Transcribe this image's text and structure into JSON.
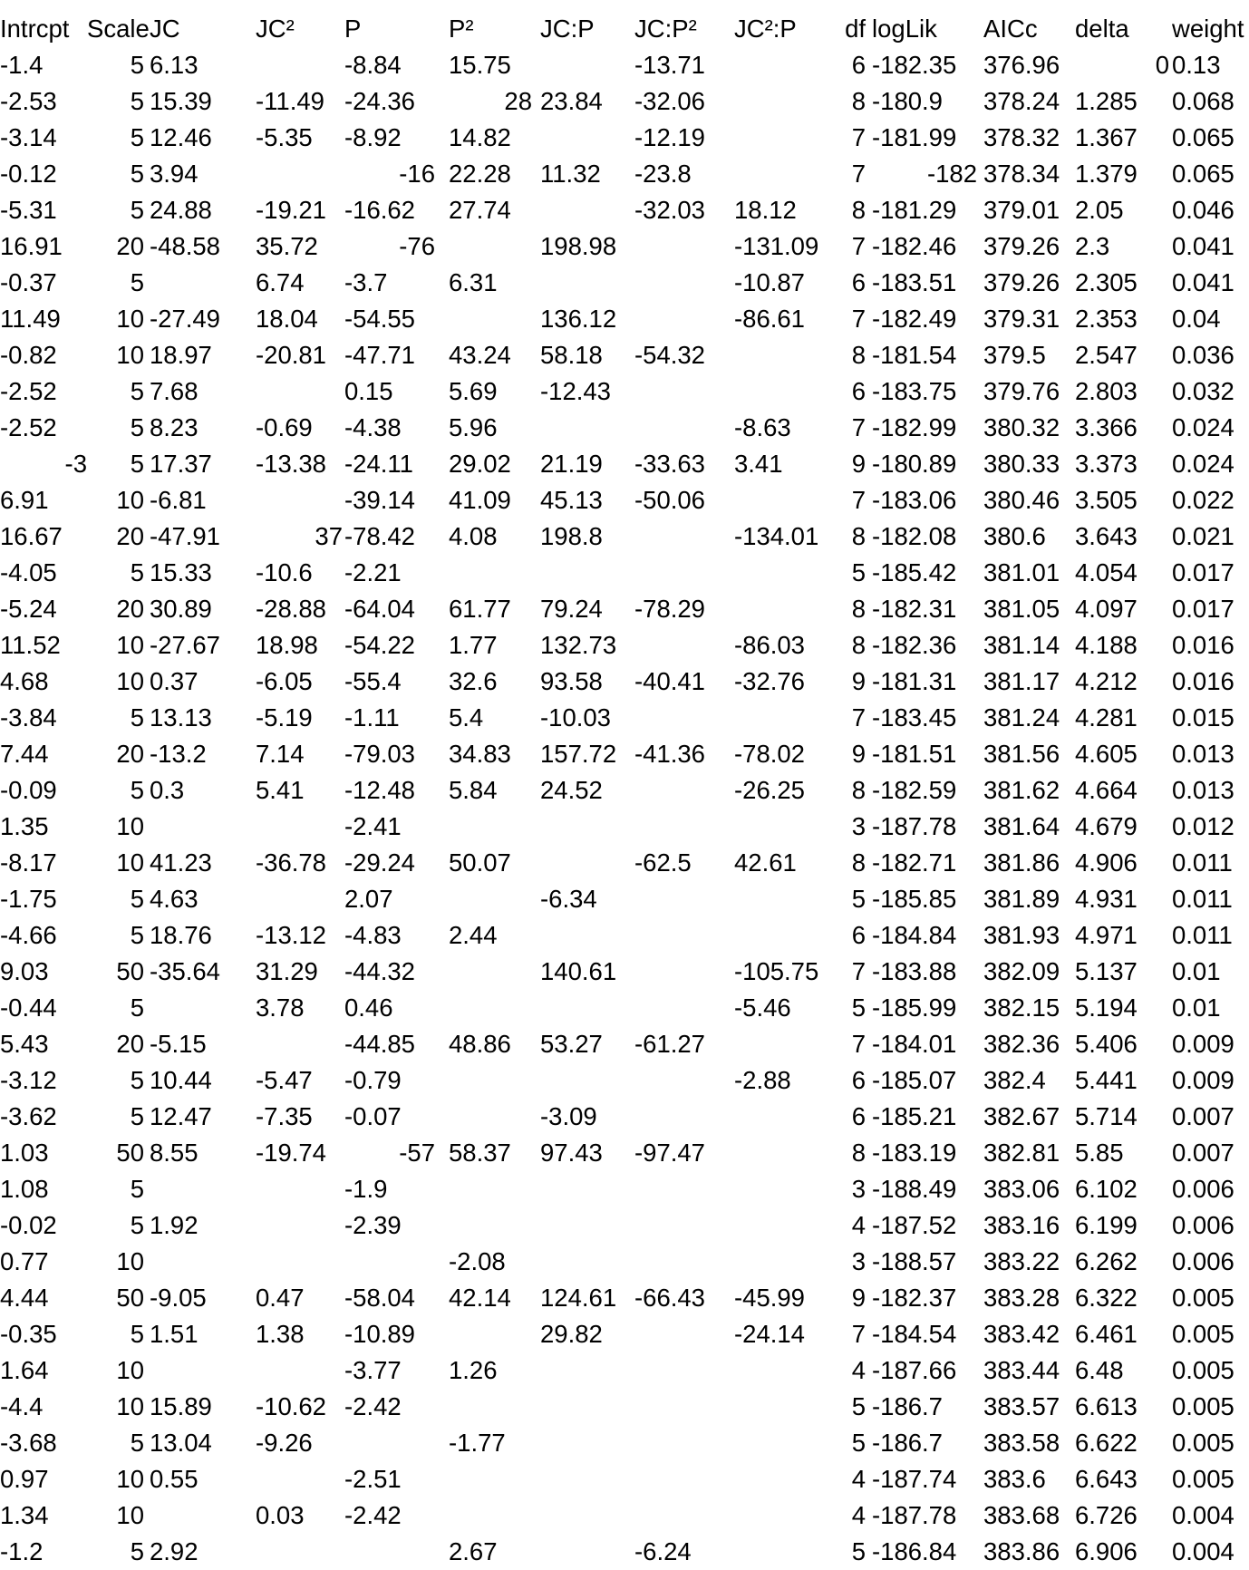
{
  "table": {
    "columns": [
      {
        "key": "intrcpt",
        "label": "Intrcpt",
        "align": "left"
      },
      {
        "key": "scale",
        "label": "Scale",
        "align": "right"
      },
      {
        "key": "jc",
        "label": "JC",
        "align": "left"
      },
      {
        "key": "jc2",
        "label": "JC²",
        "align": "left"
      },
      {
        "key": "p",
        "label": "P",
        "align": "left"
      },
      {
        "key": "p2",
        "label": "P²",
        "align": "left"
      },
      {
        "key": "jcp",
        "label": "JC:P",
        "align": "left"
      },
      {
        "key": "jcp2",
        "label": "JC:P²",
        "align": "left"
      },
      {
        "key": "jc2p",
        "label": "JC²:P",
        "align": "left"
      },
      {
        "key": "df",
        "label": "df",
        "align": "right"
      },
      {
        "key": "loglik",
        "label": "logLik",
        "align": "left"
      },
      {
        "key": "aicc",
        "label": "AICc",
        "align": "left"
      },
      {
        "key": "delta",
        "label": "delta",
        "align": "left"
      },
      {
        "key": "weight",
        "label": "weight",
        "align": "left"
      }
    ],
    "rows": [
      [
        "-1.4",
        "5",
        "6.13",
        "",
        "-8.84",
        "15.75",
        "",
        "-13.71",
        "",
        "6",
        "-182.35",
        "376.96",
        "0",
        "0.13"
      ],
      [
        "-2.53",
        "5",
        "15.39",
        "-11.49",
        "-24.36",
        "28",
        "23.84",
        "-32.06",
        "",
        "8",
        "-180.9",
        "378.24",
        "1.285",
        "0.068"
      ],
      [
        "-3.14",
        "5",
        "12.46",
        "-5.35",
        "-8.92",
        "14.82",
        "",
        "-12.19",
        "",
        "7",
        "-181.99",
        "378.32",
        "1.367",
        "0.065"
      ],
      [
        "-0.12",
        "5",
        "3.94",
        "",
        "-16",
        "22.28",
        "11.32",
        "-23.8",
        "",
        "7",
        "-182",
        "378.34",
        "1.379",
        "0.065"
      ],
      [
        "-5.31",
        "5",
        "24.88",
        "-19.21",
        "-16.62",
        "27.74",
        "",
        "-32.03",
        "18.12",
        "8",
        "-181.29",
        "379.01",
        "2.05",
        "0.046"
      ],
      [
        "16.91",
        "20",
        "-48.58",
        "35.72",
        "-76",
        "",
        "198.98",
        "",
        "-131.09",
        "7",
        "-182.46",
        "379.26",
        "2.3",
        "0.041"
      ],
      [
        "-0.37",
        "5",
        "",
        "6.74",
        "-3.7",
        "6.31",
        "",
        "",
        "-10.87",
        "6",
        "-183.51",
        "379.26",
        "2.305",
        "0.041"
      ],
      [
        "11.49",
        "10",
        "-27.49",
        "18.04",
        "-54.55",
        "",
        "136.12",
        "",
        "-86.61",
        "7",
        "-182.49",
        "379.31",
        "2.353",
        "0.04"
      ],
      [
        "-0.82",
        "10",
        "18.97",
        "-20.81",
        "-47.71",
        "43.24",
        "58.18",
        "-54.32",
        "",
        "8",
        "-181.54",
        "379.5",
        "2.547",
        "0.036"
      ],
      [
        "-2.52",
        "5",
        "7.68",
        "",
        "0.15",
        "5.69",
        "-12.43",
        "",
        "",
        "6",
        "-183.75",
        "379.76",
        "2.803",
        "0.032"
      ],
      [
        "-2.52",
        "5",
        "8.23",
        "-0.69",
        "-4.38",
        "5.96",
        "",
        "",
        "-8.63",
        "7",
        "-182.99",
        "380.32",
        "3.366",
        "0.024"
      ],
      [
        "-3",
        "5",
        "17.37",
        "-13.38",
        "-24.11",
        "29.02",
        "21.19",
        "-33.63",
        "3.41",
        "9",
        "-180.89",
        "380.33",
        "3.373",
        "0.024"
      ],
      [
        "6.91",
        "10",
        "-6.81",
        "",
        "-39.14",
        "41.09",
        "45.13",
        "-50.06",
        "",
        "7",
        "-183.06",
        "380.46",
        "3.505",
        "0.022"
      ],
      [
        "16.67",
        "20",
        "-47.91",
        "37",
        "-78.42",
        "4.08",
        "198.8",
        "",
        "-134.01",
        "8",
        "-182.08",
        "380.6",
        "3.643",
        "0.021"
      ],
      [
        "-4.05",
        "5",
        "15.33",
        "-10.6",
        "-2.21",
        "",
        "",
        "",
        "",
        "5",
        "-185.42",
        "381.01",
        "4.054",
        "0.017"
      ],
      [
        "-5.24",
        "20",
        "30.89",
        "-28.88",
        "-64.04",
        "61.77",
        "79.24",
        "-78.29",
        "",
        "8",
        "-182.31",
        "381.05",
        "4.097",
        "0.017"
      ],
      [
        "11.52",
        "10",
        "-27.67",
        "18.98",
        "-54.22",
        "1.77",
        "132.73",
        "",
        "-86.03",
        "8",
        "-182.36",
        "381.14",
        "4.188",
        "0.016"
      ],
      [
        "4.68",
        "10",
        "0.37",
        "-6.05",
        "-55.4",
        "32.6",
        "93.58",
        "-40.41",
        "-32.76",
        "9",
        "-181.31",
        "381.17",
        "4.212",
        "0.016"
      ],
      [
        "-3.84",
        "5",
        "13.13",
        "-5.19",
        "-1.11",
        "5.4",
        "-10.03",
        "",
        "",
        "7",
        "-183.45",
        "381.24",
        "4.281",
        "0.015"
      ],
      [
        "7.44",
        "20",
        "-13.2",
        "7.14",
        "-79.03",
        "34.83",
        "157.72",
        "-41.36",
        "-78.02",
        "9",
        "-181.51",
        "381.56",
        "4.605",
        "0.013"
      ],
      [
        "-0.09",
        "5",
        "0.3",
        "5.41",
        "-12.48",
        "5.84",
        "24.52",
        "",
        "-26.25",
        "8",
        "-182.59",
        "381.62",
        "4.664",
        "0.013"
      ],
      [
        "1.35",
        "10",
        "",
        "",
        "-2.41",
        "",
        "",
        "",
        "",
        "3",
        "-187.78",
        "381.64",
        "4.679",
        "0.012"
      ],
      [
        "-8.17",
        "10",
        "41.23",
        "-36.78",
        "-29.24",
        "50.07",
        "",
        "-62.5",
        "42.61",
        "8",
        "-182.71",
        "381.86",
        "4.906",
        "0.011"
      ],
      [
        "-1.75",
        "5",
        "4.63",
        "",
        "2.07",
        "",
        "-6.34",
        "",
        "",
        "5",
        "-185.85",
        "381.89",
        "4.931",
        "0.011"
      ],
      [
        "-4.66",
        "5",
        "18.76",
        "-13.12",
        "-4.83",
        "2.44",
        "",
        "",
        "",
        "6",
        "-184.84",
        "381.93",
        "4.971",
        "0.011"
      ],
      [
        "9.03",
        "50",
        "-35.64",
        "31.29",
        "-44.32",
        "",
        "140.61",
        "",
        "-105.75",
        "7",
        "-183.88",
        "382.09",
        "5.137",
        "0.01"
      ],
      [
        "-0.44",
        "5",
        "",
        "3.78",
        "0.46",
        "",
        "",
        "",
        "-5.46",
        "5",
        "-185.99",
        "382.15",
        "5.194",
        "0.01"
      ],
      [
        "5.43",
        "20",
        "-5.15",
        "",
        "-44.85",
        "48.86",
        "53.27",
        "-61.27",
        "",
        "7",
        "-184.01",
        "382.36",
        "5.406",
        "0.009"
      ],
      [
        "-3.12",
        "5",
        "10.44",
        "-5.47",
        "-0.79",
        "",
        "",
        "",
        "-2.88",
        "6",
        "-185.07",
        "382.4",
        "5.441",
        "0.009"
      ],
      [
        "-3.62",
        "5",
        "12.47",
        "-7.35",
        "-0.07",
        "",
        "-3.09",
        "",
        "",
        "6",
        "-185.21",
        "382.67",
        "5.714",
        "0.007"
      ],
      [
        "1.03",
        "50",
        "8.55",
        "-19.74",
        "-57",
        "58.37",
        "97.43",
        "-97.47",
        "",
        "8",
        "-183.19",
        "382.81",
        "5.85",
        "0.007"
      ],
      [
        "1.08",
        "5",
        "",
        "",
        "-1.9",
        "",
        "",
        "",
        "",
        "3",
        "-188.49",
        "383.06",
        "6.102",
        "0.006"
      ],
      [
        "-0.02",
        "5",
        "1.92",
        "",
        "-2.39",
        "",
        "",
        "",
        "",
        "4",
        "-187.52",
        "383.16",
        "6.199",
        "0.006"
      ],
      [
        "0.77",
        "10",
        "",
        "",
        "",
        "-2.08",
        "",
        "",
        "",
        "3",
        "-188.57",
        "383.22",
        "6.262",
        "0.006"
      ],
      [
        "4.44",
        "50",
        "-9.05",
        "0.47",
        "-58.04",
        "42.14",
        "124.61",
        "-66.43",
        "-45.99",
        "9",
        "-182.37",
        "383.28",
        "6.322",
        "0.005"
      ],
      [
        "-0.35",
        "5",
        "1.51",
        "1.38",
        "-10.89",
        "",
        "29.82",
        "",
        "-24.14",
        "7",
        "-184.54",
        "383.42",
        "6.461",
        "0.005"
      ],
      [
        "1.64",
        "10",
        "",
        "",
        "-3.77",
        "1.26",
        "",
        "",
        "",
        "4",
        "-187.66",
        "383.44",
        "6.48",
        "0.005"
      ],
      [
        "-4.4",
        "10",
        "15.89",
        "-10.62",
        "-2.42",
        "",
        "",
        "",
        "",
        "5",
        "-186.7",
        "383.57",
        "6.613",
        "0.005"
      ],
      [
        "-3.68",
        "5",
        "13.04",
        "-9.26",
        "",
        "-1.77",
        "",
        "",
        "",
        "5",
        "-186.7",
        "383.58",
        "6.622",
        "0.005"
      ],
      [
        "0.97",
        "10",
        "0.55",
        "",
        "-2.51",
        "",
        "",
        "",
        "",
        "4",
        "-187.74",
        "383.6",
        "6.643",
        "0.005"
      ],
      [
        "1.34",
        "10",
        "",
        "0.03",
        "-2.42",
        "",
        "",
        "",
        "",
        "4",
        "-187.78",
        "383.68",
        "6.726",
        "0.004"
      ],
      [
        "-1.2",
        "5",
        "2.92",
        "",
        "",
        "2.67",
        "",
        "-6.24",
        "",
        "5",
        "-186.84",
        "383.86",
        "6.906",
        "0.004"
      ]
    ]
  }
}
